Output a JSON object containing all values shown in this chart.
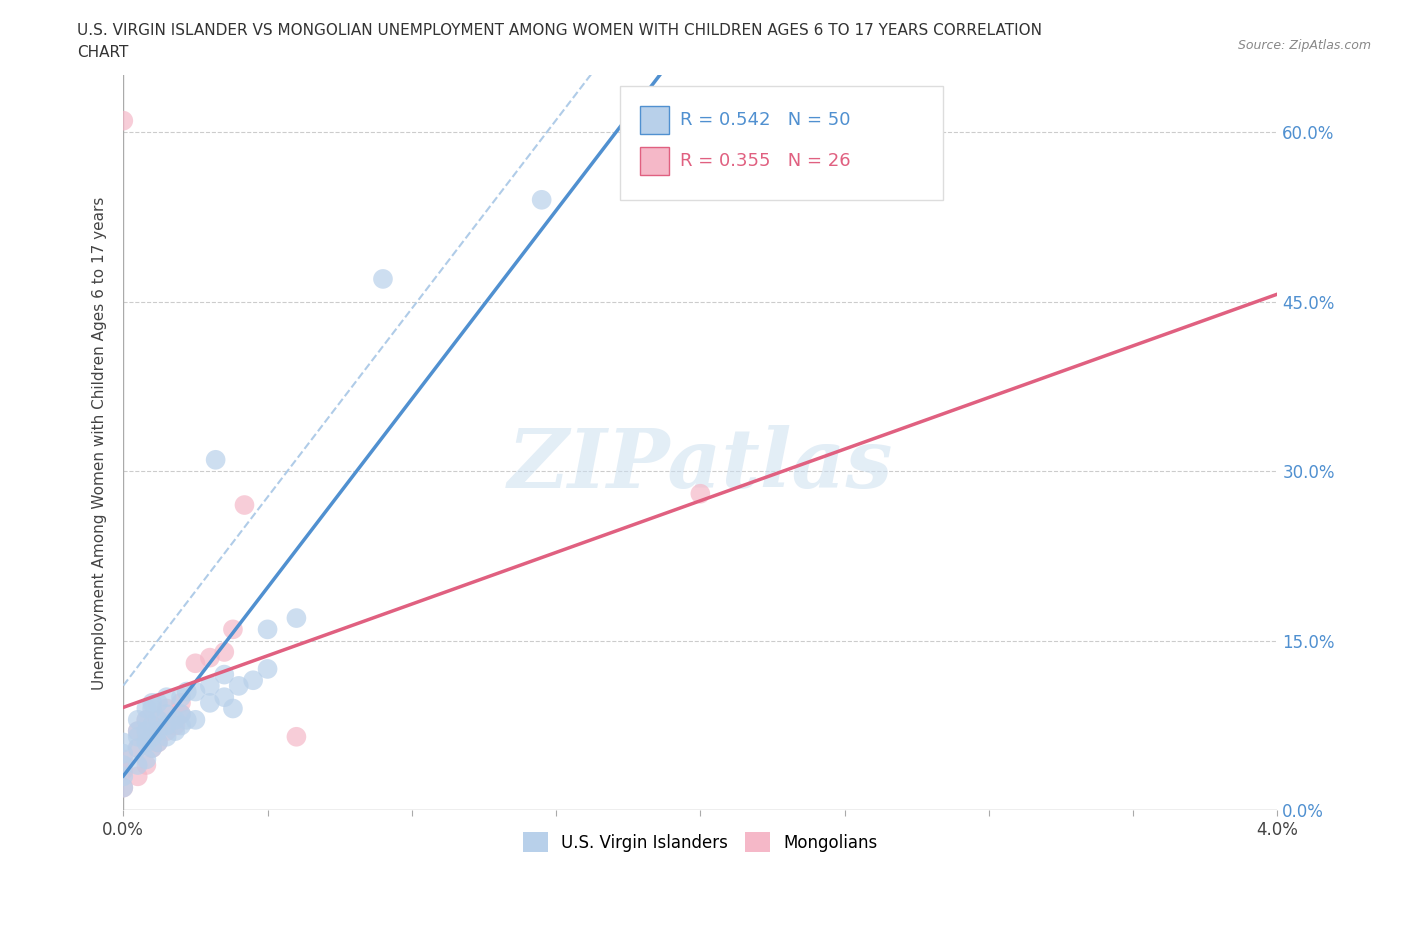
{
  "title_line1": "U.S. VIRGIN ISLANDER VS MONGOLIAN UNEMPLOYMENT AMONG WOMEN WITH CHILDREN AGES 6 TO 17 YEARS CORRELATION",
  "title_line2": "CHART",
  "source_text": "Source: ZipAtlas.com",
  "ylabel": "Unemployment Among Women with Children Ages 6 to 17 years",
  "xmin": 0.0,
  "xmax": 0.04,
  "ymin": 0.0,
  "ymax": 0.65,
  "yticks": [
    0.0,
    0.15,
    0.3,
    0.45,
    0.6
  ],
  "ytick_labels": [
    "0.0%",
    "15.0%",
    "30.0%",
    "45.0%",
    "60.0%"
  ],
  "xticks": [
    0.0,
    0.005,
    0.01,
    0.015,
    0.02,
    0.025,
    0.03,
    0.035,
    0.04
  ],
  "xtick_labels": [
    "0.0%",
    "",
    "",
    "",
    "",
    "",
    "",
    "",
    "4.0%"
  ],
  "blue_R": 0.542,
  "blue_N": 50,
  "pink_R": 0.355,
  "pink_N": 26,
  "blue_fill_color": "#b8d0ea",
  "pink_fill_color": "#f5b8c8",
  "blue_line_color": "#5090d0",
  "pink_line_color": "#e06080",
  "blue_trend_color": "#5090d0",
  "dashed_line_color": "#b0cce8",
  "watermark_text": "ZIPatlas",
  "legend_label_blue": "U.S. Virgin Islanders",
  "legend_label_pink": "Mongolians",
  "blue_scatter_x": [
    0.0,
    0.0,
    0.0,
    0.0,
    0.0,
    0.0005,
    0.0005,
    0.0005,
    0.0005,
    0.0005,
    0.0008,
    0.0008,
    0.0008,
    0.0008,
    0.0008,
    0.001,
    0.001,
    0.001,
    0.001,
    0.001,
    0.0012,
    0.0012,
    0.0012,
    0.0012,
    0.0015,
    0.0015,
    0.0015,
    0.0015,
    0.0018,
    0.0018,
    0.002,
    0.002,
    0.002,
    0.0022,
    0.0022,
    0.0025,
    0.0025,
    0.003,
    0.003,
    0.0032,
    0.0035,
    0.0035,
    0.0038,
    0.004,
    0.0045,
    0.005,
    0.005,
    0.006,
    0.009,
    0.0145
  ],
  "blue_scatter_y": [
    0.02,
    0.03,
    0.04,
    0.05,
    0.06,
    0.04,
    0.055,
    0.065,
    0.07,
    0.08,
    0.045,
    0.06,
    0.07,
    0.08,
    0.09,
    0.055,
    0.065,
    0.075,
    0.09,
    0.095,
    0.06,
    0.07,
    0.08,
    0.095,
    0.065,
    0.075,
    0.085,
    0.1,
    0.07,
    0.08,
    0.075,
    0.085,
    0.1,
    0.08,
    0.105,
    0.08,
    0.105,
    0.095,
    0.11,
    0.31,
    0.1,
    0.12,
    0.09,
    0.11,
    0.115,
    0.125,
    0.16,
    0.17,
    0.47,
    0.54
  ],
  "pink_scatter_x": [
    0.0,
    0.0,
    0.0,
    0.0,
    0.0005,
    0.0005,
    0.0005,
    0.0008,
    0.0008,
    0.0008,
    0.001,
    0.001,
    0.0012,
    0.0012,
    0.0015,
    0.0015,
    0.0018,
    0.002,
    0.002,
    0.0025,
    0.003,
    0.0035,
    0.0038,
    0.0042,
    0.006,
    0.02
  ],
  "pink_scatter_y": [
    0.02,
    0.035,
    0.045,
    0.61,
    0.03,
    0.055,
    0.07,
    0.04,
    0.065,
    0.08,
    0.055,
    0.075,
    0.06,
    0.08,
    0.07,
    0.09,
    0.075,
    0.085,
    0.095,
    0.13,
    0.135,
    0.14,
    0.16,
    0.27,
    0.065,
    0.28
  ]
}
